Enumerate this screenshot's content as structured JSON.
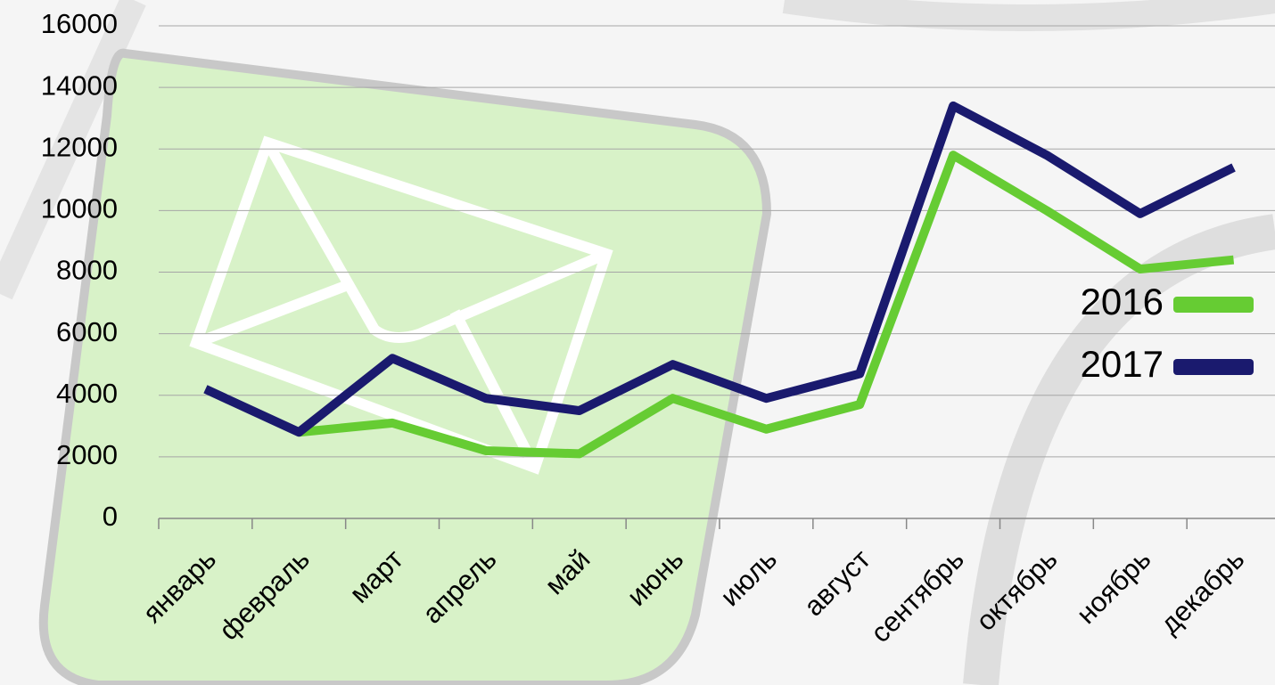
{
  "chart_data": {
    "type": "line",
    "categories": [
      "январь",
      "февраль",
      "март",
      "апрель",
      "май",
      "июнь",
      "июль",
      "август",
      "сентябрь",
      "октябрь",
      "ноябрь",
      "декабрь"
    ],
    "series": [
      {
        "name": "2016",
        "color": "#66cc33",
        "values": [
          null,
          2800,
          3100,
          2200,
          2100,
          3900,
          2900,
          3700,
          11800,
          10000,
          8100,
          8400
        ]
      },
      {
        "name": "2017",
        "color": "#1a1a6e",
        "values": [
          4200,
          2800,
          5200,
          3900,
          3500,
          5000,
          3900,
          4700,
          13400,
          11800,
          9900,
          11400
        ]
      }
    ],
    "ylim": [
      0,
      16000
    ],
    "yticks": [
      0,
      2000,
      4000,
      6000,
      8000,
      10000,
      12000,
      14000,
      16000
    ],
    "grid": true,
    "legend": "right"
  }
}
